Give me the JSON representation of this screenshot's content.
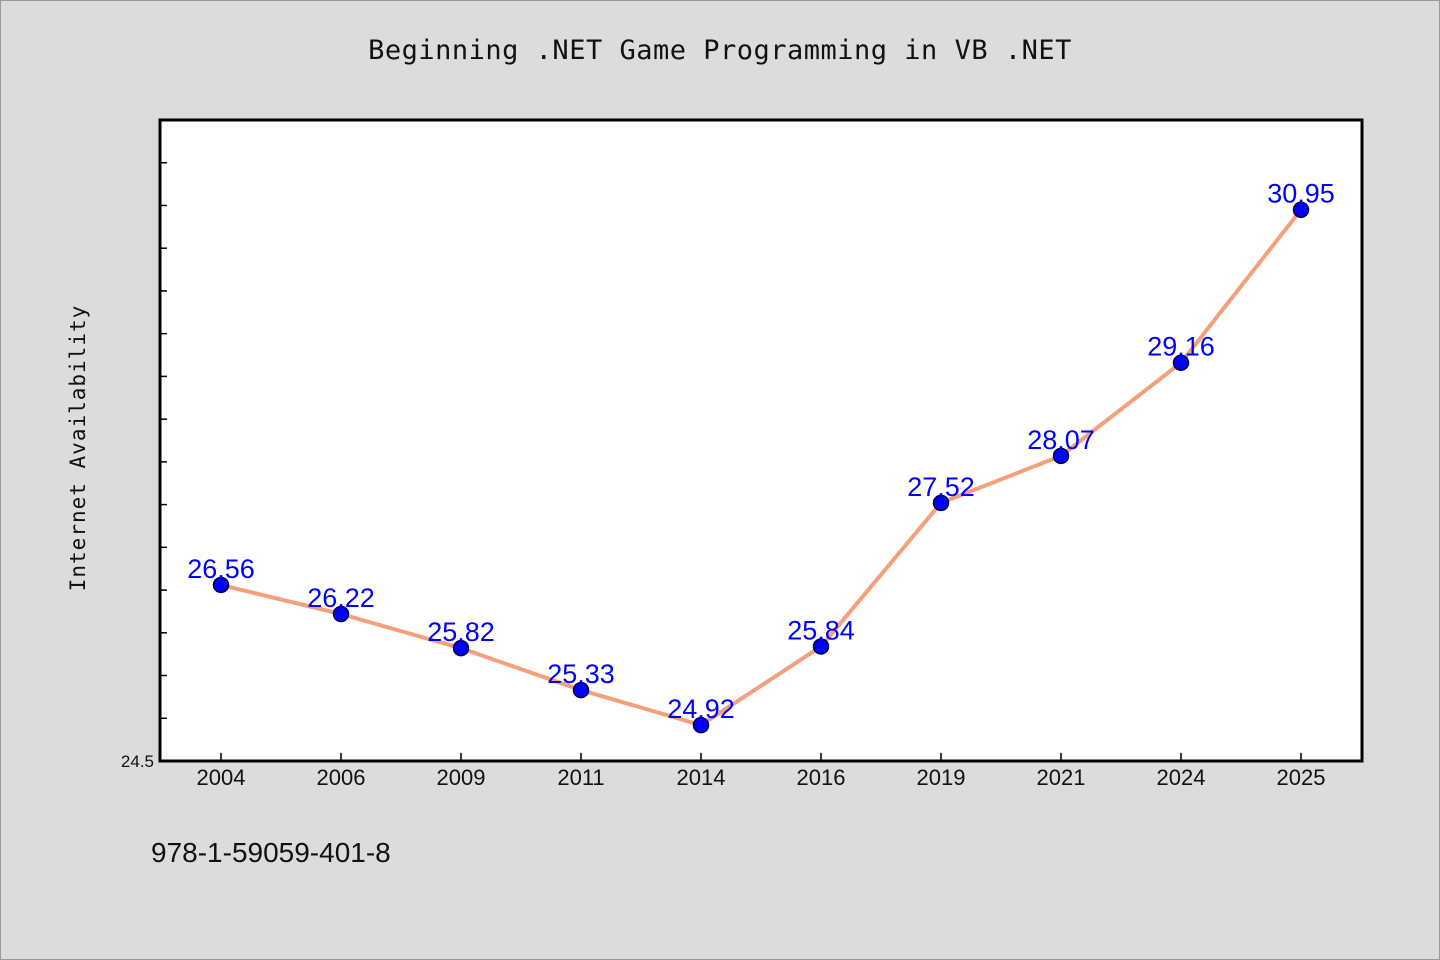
{
  "chart_data": {
    "type": "line",
    "title": "Beginning .NET Game Programming in VB .NET",
    "xlabel": "",
    "ylabel": "Internet Availability",
    "categories": [
      "2004",
      "2006",
      "2009",
      "2011",
      "2014",
      "2016",
      "2019",
      "2021",
      "2024",
      "2025"
    ],
    "series": [
      {
        "values": [
          26.56,
          26.22,
          25.82,
          25.33,
          24.92,
          25.84,
          27.52,
          28.07,
          29.16,
          30.95
        ]
      }
    ],
    "data_labels": [
      "26.56",
      "26.22",
      "25.82",
      "25.33",
      "24.92",
      "25.84",
      "27.52",
      "28.07",
      "29.16",
      "30.95"
    ],
    "ylim": [
      24.5,
      32.0
    ],
    "y_tick_label": "24.5",
    "grid": false,
    "legend": "none",
    "colors": {
      "line": "#f4a07c",
      "marker": "#0000ff",
      "data_label": "#0000ff",
      "background": "#dcdcdc",
      "plot_background": "#ffffff"
    }
  },
  "footer": {
    "isbn": "978-1-59059-401-8"
  }
}
